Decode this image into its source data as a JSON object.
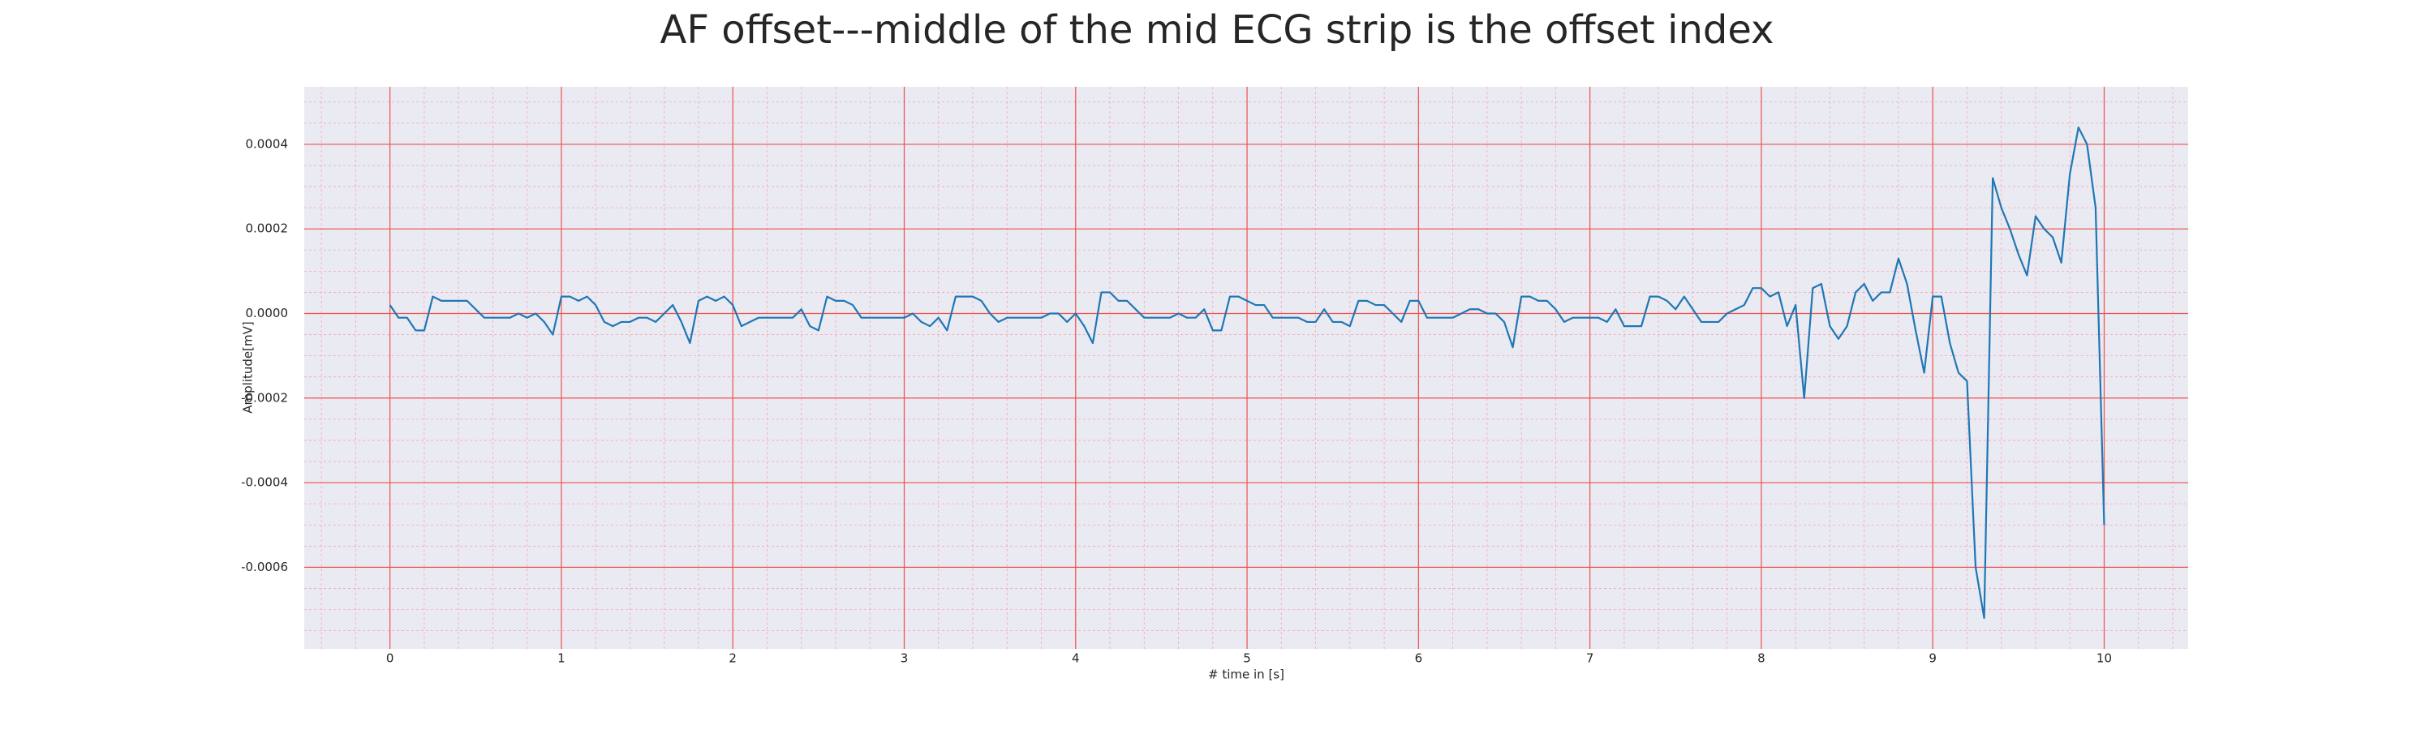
{
  "chart_data": {
    "type": "line",
    "title": "AF offset---middle of the mid ECG strip is the offset index",
    "xlabel": "# time in [s]",
    "ylabel": "Amplitude[mV]",
    "color": "#1f77b4",
    "grid": true,
    "xlim": [
      -0.5,
      10.49
    ],
    "ylim": [
      -0.000793,
      0.000536
    ],
    "xticks": [
      0,
      1,
      2,
      3,
      4,
      5,
      6,
      7,
      8,
      9,
      10
    ],
    "yticks": [
      -0.0006,
      -0.0004,
      -0.0002,
      {
        "value": 0,
        "label": "0.0000"
      },
      0.0002,
      0.0004
    ],
    "x": [
      0,
      0.05,
      0.1,
      0.15,
      0.2,
      0.25,
      0.3,
      0.35,
      0.4,
      0.45,
      0.5,
      0.55,
      0.6,
      0.65,
      0.7,
      0.75,
      0.8,
      0.85,
      0.9,
      0.95,
      1,
      1.05,
      1.1,
      1.15,
      1.2,
      1.25,
      1.3,
      1.35,
      1.4,
      1.45,
      1.5,
      1.55,
      1.6,
      1.65,
      1.7,
      1.75,
      1.8,
      1.85,
      1.9,
      1.95,
      2,
      2.05,
      2.1,
      2.15,
      2.2,
      2.25,
      2.3,
      2.35,
      2.4,
      2.45,
      2.5,
      2.55,
      2.6,
      2.65,
      2.7,
      2.75,
      2.8,
      2.85,
      2.9,
      2.95,
      3,
      3.05,
      3.1,
      3.15,
      3.2,
      3.25,
      3.3,
      3.35,
      3.4,
      3.45,
      3.5,
      3.55,
      3.6,
      3.65,
      3.7,
      3.75,
      3.8,
      3.85,
      3.9,
      3.95,
      4,
      4.05,
      4.1,
      4.15,
      4.2,
      4.25,
      4.3,
      4.35,
      4.4,
      4.45,
      4.5,
      4.55,
      4.6,
      4.65,
      4.7,
      4.75,
      4.8,
      4.85,
      4.9,
      4.95,
      5,
      5.05,
      5.1,
      5.15,
      5.2,
      5.25,
      5.3,
      5.35,
      5.4,
      5.45,
      5.5,
      5.55,
      5.6,
      5.65,
      5.7,
      5.75,
      5.8,
      5.85,
      5.9,
      5.95,
      6,
      6.05,
      6.1,
      6.15,
      6.2,
      6.25,
      6.3,
      6.35,
      6.4,
      6.45,
      6.5,
      6.55,
      6.6,
      6.65,
      6.7,
      6.75,
      6.8,
      6.85,
      6.9,
      6.95,
      7,
      7.05,
      7.1,
      7.15,
      7.2,
      7.25,
      7.3,
      7.35,
      7.4,
      7.45,
      7.5,
      7.55,
      7.6,
      7.65,
      7.7,
      7.75,
      7.8,
      7.85,
      7.9,
      7.95,
      8,
      8.05,
      8.1,
      8.15,
      8.2,
      8.25,
      8.3,
      8.35,
      8.4,
      8.45,
      8.5,
      8.55,
      8.6,
      8.65,
      8.7,
      8.75,
      8.8,
      8.85,
      8.9,
      8.95,
      9,
      9.05,
      9.1,
      9.15,
      9.2,
      9.25,
      9.3,
      9.35,
      9.4,
      9.45,
      9.5,
      9.55,
      9.6,
      9.65,
      9.7,
      9.75,
      9.8,
      9.85,
      9.9,
      9.95,
      10
    ],
    "values": [
      2e-05,
      -1e-05,
      -1e-05,
      -4e-05,
      -4e-05,
      4e-05,
      3e-05,
      3e-05,
      3e-05,
      3e-05,
      1e-05,
      -1e-05,
      -1e-05,
      -1e-05,
      -1e-05,
      0,
      -1e-05,
      0,
      -2e-05,
      -5e-05,
      4e-05,
      4e-05,
      3e-05,
      4e-05,
      2e-05,
      -2e-05,
      -3e-05,
      -2e-05,
      -2e-05,
      -1e-05,
      -1e-05,
      -2e-05,
      0,
      2e-05,
      -2e-05,
      -7e-05,
      3e-05,
      4e-05,
      3e-05,
      4e-05,
      2e-05,
      -3e-05,
      -2e-05,
      -1e-05,
      -1e-05,
      -1e-05,
      -1e-05,
      -1e-05,
      1e-05,
      -3e-05,
      -4e-05,
      4e-05,
      3e-05,
      3e-05,
      2e-05,
      -1e-05,
      -1e-05,
      -1e-05,
      -1e-05,
      -1e-05,
      -1e-05,
      0,
      -2e-05,
      -3e-05,
      -1e-05,
      -4e-05,
      4e-05,
      4e-05,
      4e-05,
      3e-05,
      0,
      -2e-05,
      -1e-05,
      -1e-05,
      -1e-05,
      -1e-05,
      -1e-05,
      0,
      0,
      -2e-05,
      0,
      -3e-05,
      -7e-05,
      5e-05,
      5e-05,
      3e-05,
      3e-05,
      1e-05,
      -1e-05,
      -1e-05,
      -1e-05,
      -1e-05,
      0,
      -1e-05,
      -1e-05,
      1e-05,
      -4e-05,
      -4e-05,
      4e-05,
      4e-05,
      3e-05,
      2e-05,
      2e-05,
      -1e-05,
      -1e-05,
      -1e-05,
      -1e-05,
      -2e-05,
      -2e-05,
      1e-05,
      -2e-05,
      -2e-05,
      -3e-05,
      3e-05,
      3e-05,
      2e-05,
      2e-05,
      0,
      -2e-05,
      3e-05,
      3e-05,
      -1e-05,
      -1e-05,
      -1e-05,
      -1e-05,
      0,
      1e-05,
      1e-05,
      0,
      0,
      -2e-05,
      -8e-05,
      4e-05,
      4e-05,
      3e-05,
      3e-05,
      1e-05,
      -2e-05,
      -1e-05,
      -1e-05,
      -1e-05,
      -1e-05,
      -2e-05,
      1e-05,
      -3e-05,
      -3e-05,
      -3e-05,
      4e-05,
      4e-05,
      3e-05,
      1e-05,
      4e-05,
      1e-05,
      -2e-05,
      -2e-05,
      -2e-05,
      0,
      1e-05,
      2e-05,
      6e-05,
      6e-05,
      4e-05,
      5e-05,
      -3e-05,
      2e-05,
      -0.0002,
      6e-05,
      7e-05,
      -3e-05,
      -6e-05,
      -3e-05,
      5e-05,
      7e-05,
      3e-05,
      5e-05,
      5e-05,
      0.00013,
      7e-05,
      -4e-05,
      -0.00014,
      4e-05,
      4e-05,
      -7e-05,
      -0.00014,
      -0.00016,
      -0.0006,
      -0.00072,
      0.00032,
      0.00025,
      0.0002,
      0.00014,
      9e-05,
      0.00023,
      0.0002,
      0.00018,
      0.00012,
      0.00033,
      0.00044,
      0.0004,
      0.00025,
      -0.0005
    ]
  }
}
